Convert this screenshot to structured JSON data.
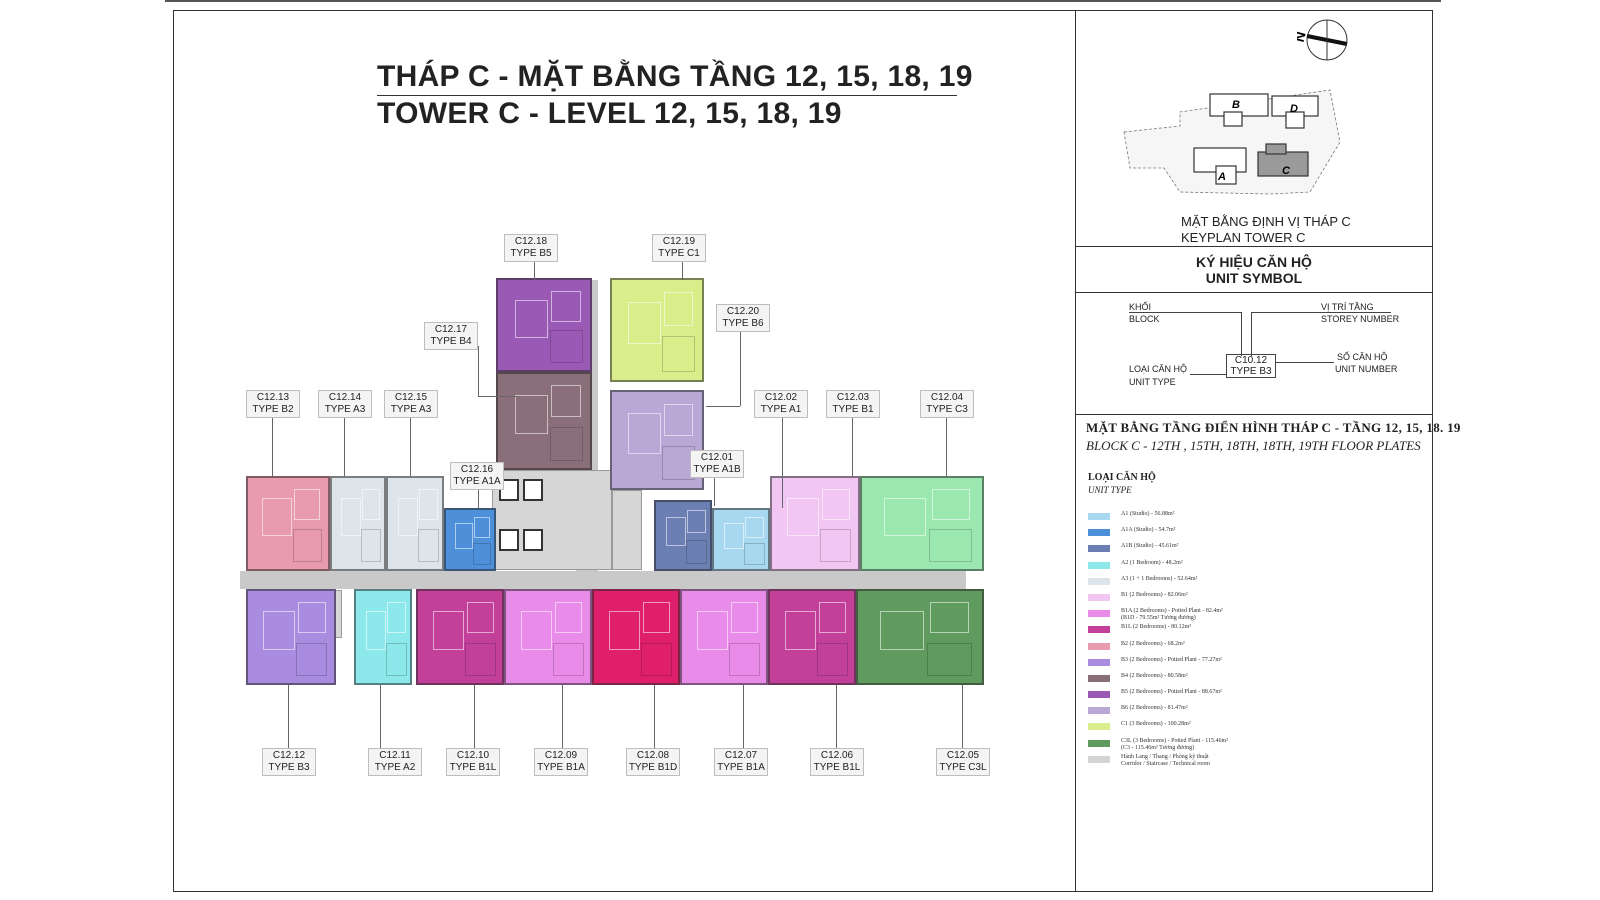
{
  "title": {
    "line1": "THÁP C - MẶT BẰNG TẦNG 12, 15, 18, 19",
    "line2": "TOWER C - LEVEL 12, 15, 18, 19"
  },
  "compass": {
    "label": "N"
  },
  "keyplan": {
    "blocks": [
      "B",
      "D",
      "A",
      "C"
    ],
    "caption_vi": "MẶT BẰNG ĐỊNH VỊ THÁP C",
    "caption_en": "KEYPLAN TOWER C"
  },
  "unit_symbol": {
    "title_vi": "KÝ HIỆU CĂN HỘ",
    "title_en": "UNIT SYMBOL",
    "block_vi": "KHỐI",
    "block_en": "BLOCK",
    "storey_vi": "VỊ TRÍ TẦNG",
    "storey_en": "STOREY NUMBER",
    "unit_type_vi": "LOẠI CĂN HỘ",
    "unit_type_en": "UNIT TYPE",
    "unit_number_vi": "SỐ CĂN HỘ",
    "unit_number_en": "UNIT NUMBER",
    "example_code": "C10.12",
    "example_type": "TYPE B3"
  },
  "floorplate": {
    "title_vi": "MẶT BẰNG TẦNG ĐIỂN HÌNH THÁP C - TẦNG 12, 15, 18. 19",
    "title_en": "BLOCK C - 12TH , 15TH, 18TH, 18TH, 19TH FLOOR PLATES",
    "unit_type_vi": "LOẠI CĂN HỘ",
    "unit_type_en": "UNIT TYPE"
  },
  "units": [
    {
      "code": "C12.18",
      "type": "TYPE B5",
      "color": "#9b59b6"
    },
    {
      "code": "C12.19",
      "type": "TYPE C1",
      "color": "#d9ee8a"
    },
    {
      "code": "C12.17",
      "type": "TYPE B4",
      "color": "#8a6f7a"
    },
    {
      "code": "C12.20",
      "type": "TYPE B6",
      "color": "#b9a7d6"
    },
    {
      "code": "C12.13",
      "type": "TYPE B2",
      "color": "#e89aae"
    },
    {
      "code": "C12.14",
      "type": "TYPE A3",
      "color": "#dde5ea"
    },
    {
      "code": "C12.15",
      "type": "TYPE A3",
      "color": "#dde5ea"
    },
    {
      "code": "C12.16",
      "type": "TYPE A1A",
      "color": "#4d8fd9"
    },
    {
      "code": "C12.01",
      "type": "TYPE A1B",
      "color": "#6b7fb3"
    },
    {
      "code": "C12.02",
      "type": "TYPE A1",
      "color": "#a8d8f0"
    },
    {
      "code": "C12.03",
      "type": "TYPE B1",
      "color": "#f2c6f2"
    },
    {
      "code": "C12.04",
      "type": "TYPE C3",
      "color": "#9ae8b0"
    },
    {
      "code": "C12.12",
      "type": "TYPE B3",
      "color": "#a98be0"
    },
    {
      "code": "C12.11",
      "type": "TYPE A2",
      "color": "#8ce8ea"
    },
    {
      "code": "C12.10",
      "type": "TYPE B1L",
      "color": "#c2409a"
    },
    {
      "code": "C12.09",
      "type": "TYPE B1A",
      "color": "#e98be9"
    },
    {
      "code": "C12.08",
      "type": "TYPE B1D",
      "color": "#e01f6c"
    },
    {
      "code": "C12.07",
      "type": "TYPE B1A",
      "color": "#e98be9"
    },
    {
      "code": "C12.06",
      "type": "TYPE B1L",
      "color": "#c2409a"
    },
    {
      "code": "C12.05",
      "type": "TYPE C3L",
      "color": "#5f9b5f"
    }
  ],
  "legend": [
    {
      "color": "#a8d8f0",
      "text": "A1 (Studio) - 56.88m²"
    },
    {
      "color": "#4d8fd9",
      "text": "A1A (Studio) - 54.7m²"
    },
    {
      "color": "#6b7fb3",
      "text": "A1B (Studio) - 45.61m²"
    },
    {
      "color": "#8ce8ea",
      "text": "A2 (1 Bedroom) - 48.2m²"
    },
    {
      "color": "#dde5ea",
      "text": "A3 (1 + 1 Bedrooms) - 52.64m²"
    },
    {
      "color": "#f2c6f2",
      "text": "B1 (2 Bedrooms) - 82.06m²"
    },
    {
      "color": "#e98be9",
      "text": "B1A (2 Bedrooms) - Potted Plant - 82.4m²",
      "sub": "(B1D - 79.55m² Tương đương)"
    },
    {
      "color": "#c2409a",
      "text": "B1L (2 Bedrooms) - 80.12m²"
    },
    {
      "color": "#e89aae",
      "text": "B2 (2 Bedrooms) - 68.2m²"
    },
    {
      "color": "#a98be0",
      "text": "B3 (2 Bedrooms) - Potted Plant - 77.27m²"
    },
    {
      "color": "#8a6f7a",
      "text": "B4 (2 Bedrooms) - 80.58m²"
    },
    {
      "color": "#9b59b6",
      "text": "B5 (2 Bedrooms) - Potted Plant - 88.67m²"
    },
    {
      "color": "#b9a7d6",
      "text": "B6 (2 Bedrooms) - 81.47m²"
    },
    {
      "color": "#d9ee8a",
      "text": "C1 (3 Bedrooms) - 100.28m²"
    },
    {
      "color": "#5f9b5f",
      "text": "C3L (3 Bedrooms) - Potted Plant - 115.46m²",
      "sub": "(C3 - 115.46m² Tương đương)"
    },
    {
      "color": "#d4d4d4",
      "text": "Hành Lang / Thang / Phòng kỹ thuật",
      "sub": "Corridor / Staircase / Technical room"
    }
  ]
}
